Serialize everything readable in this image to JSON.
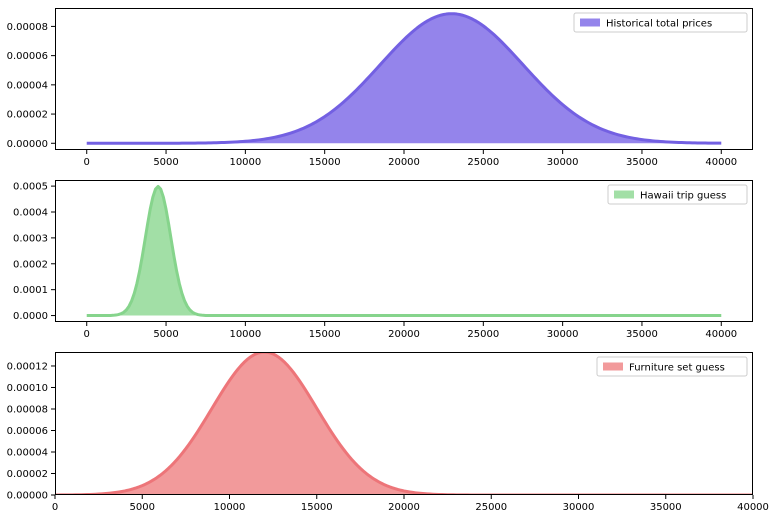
{
  "chart_data": [
    {
      "type": "area",
      "distribution": "normal",
      "mean": 23000,
      "std": 4500,
      "x_range": [
        0,
        40000
      ],
      "xlim": [
        -2000,
        42000
      ],
      "ylim": [
        -4.6e-06,
        9.26e-05
      ],
      "series": [
        {
          "name": "Historical total prices",
          "peak": 8.87e-05
        }
      ],
      "xticks": [
        0,
        5000,
        10000,
        15000,
        20000,
        25000,
        30000,
        35000,
        40000
      ],
      "xtick_labels": [
        "0",
        "5000",
        "10000",
        "15000",
        "20000",
        "25000",
        "30000",
        "35000",
        "40000"
      ],
      "yticks": [
        0,
        2e-05,
        4e-05,
        6e-05,
        8e-05
      ],
      "ytick_labels": [
        "0.00000",
        "0.00002",
        "0.00004",
        "0.00006",
        "0.00008"
      ],
      "legend_position": "upper right",
      "fill_color": "#9484eb",
      "line_color": "#7360e2"
    },
    {
      "type": "area",
      "distribution": "normal",
      "mean": 4500,
      "std": 800,
      "x_range": [
        0,
        40000
      ],
      "xlim": [
        -2000,
        42000
      ],
      "ylim": [
        -2.49e-05,
        0.0005236
      ],
      "series": [
        {
          "name": "Hawaii trip guess",
          "peak": 0.0004987
        }
      ],
      "xticks": [
        0,
        5000,
        10000,
        15000,
        20000,
        25000,
        30000,
        35000,
        40000
      ],
      "xtick_labels": [
        "0",
        "5000",
        "10000",
        "15000",
        "20000",
        "25000",
        "30000",
        "35000",
        "40000"
      ],
      "yticks": [
        0,
        0.0001,
        0.0002,
        0.0003,
        0.0004,
        0.0005
      ],
      "ytick_labels": [
        "0.0000",
        "0.0001",
        "0.0002",
        "0.0003",
        "0.0004",
        "0.0005"
      ],
      "legend_position": "upper right",
      "fill_color": "#a2dfa6",
      "line_color": "#86d48c"
    },
    {
      "type": "area",
      "distribution": "normal",
      "mean": 12000,
      "std": 3000,
      "x_range": [
        0,
        40000
      ],
      "xlim": [
        0,
        40000
      ],
      "ylim": [
        0,
        0.000133
      ],
      "series": [
        {
          "name": "Furniture set guess",
          "peak": 0.000133
        }
      ],
      "xticks": [
        0,
        5000,
        10000,
        15000,
        20000,
        25000,
        30000,
        35000,
        40000
      ],
      "xtick_labels": [
        "0",
        "5000",
        "10000",
        "15000",
        "20000",
        "25000",
        "30000",
        "35000",
        "40000"
      ],
      "yticks": [
        0,
        2e-05,
        4e-05,
        6e-05,
        8e-05,
        0.0001,
        0.00012
      ],
      "ytick_labels": [
        "0.00000",
        "0.00002",
        "0.00004",
        "0.00006",
        "0.00008",
        "0.00010",
        "0.00012"
      ],
      "legend_position": "upper right",
      "fill_color": "#f29a9b",
      "line_color": "#ed7579"
    }
  ]
}
